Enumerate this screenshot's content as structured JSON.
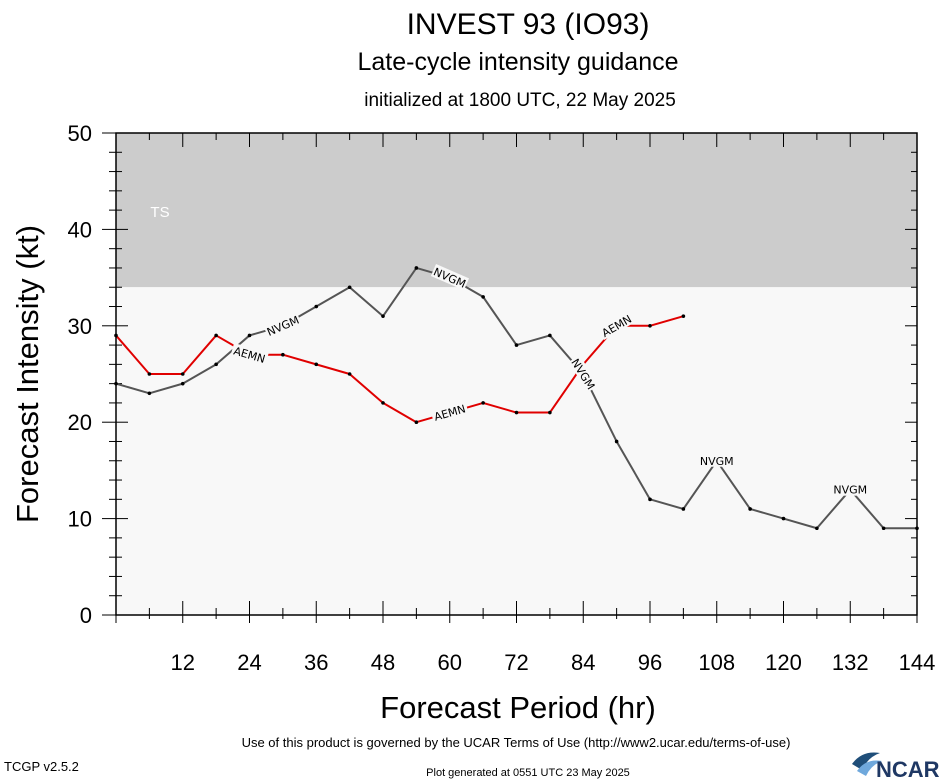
{
  "header": {
    "title": "INVEST 93 (IO93)",
    "subtitle": "Late-cycle intensity guidance",
    "init_text": "initialized at 1800 UTC, 22 May 2025"
  },
  "footer": {
    "terms": "Use of this product is governed by the UCAR Terms of Use (http://www2.ucar.edu/terms-of-use)",
    "version": "TCGP v2.5.2",
    "generated": "Plot generated at 0551 UTC   23 May 2025",
    "logo_text": "NCAR"
  },
  "chart_data": {
    "type": "line",
    "title": "INVEST 93 (IO93)",
    "xlabel": "Forecast Period (hr)",
    "ylabel": "Forecast Intensity (kt)",
    "xlim": [
      0,
      144
    ],
    "ylim": [
      0,
      50
    ],
    "x_ticks": [
      12,
      24,
      36,
      48,
      60,
      72,
      84,
      96,
      108,
      120,
      132,
      144
    ],
    "y_ticks": [
      0,
      10,
      20,
      30,
      40,
      50
    ],
    "bands": [
      {
        "label": "TS",
        "from": 34,
        "to": 50,
        "color": "#cccccc"
      },
      {
        "label": "",
        "from": 0,
        "to": 34,
        "color": "#f8f8f8"
      }
    ],
    "series": [
      {
        "name": "NVGM",
        "color": "#555555",
        "x": [
          0,
          6,
          12,
          18,
          24,
          30,
          36,
          42,
          48,
          54,
          60,
          66,
          72,
          78,
          84,
          90,
          96,
          102,
          108,
          114,
          120,
          126,
          132,
          138,
          144
        ],
        "y": [
          24,
          23,
          24,
          26,
          29,
          30,
          32,
          34,
          31,
          36,
          35,
          33,
          28,
          29,
          25,
          18,
          12,
          11,
          16,
          11,
          10,
          9,
          13,
          9,
          9
        ],
        "label_at_x": [
          30,
          60,
          84,
          108,
          132
        ]
      },
      {
        "name": "AEMN",
        "color": "#e00000",
        "x": [
          0,
          6,
          12,
          18,
          24,
          30,
          36,
          42,
          48,
          54,
          60,
          66,
          72,
          78,
          84,
          90,
          96,
          102
        ],
        "y": [
          29,
          25,
          25,
          29,
          27,
          27,
          26,
          25,
          22,
          20,
          21,
          22,
          21,
          21,
          26,
          30,
          30,
          31
        ],
        "label_at_x": [
          24,
          60,
          90
        ]
      }
    ],
    "grid": false,
    "legend": "inline"
  }
}
